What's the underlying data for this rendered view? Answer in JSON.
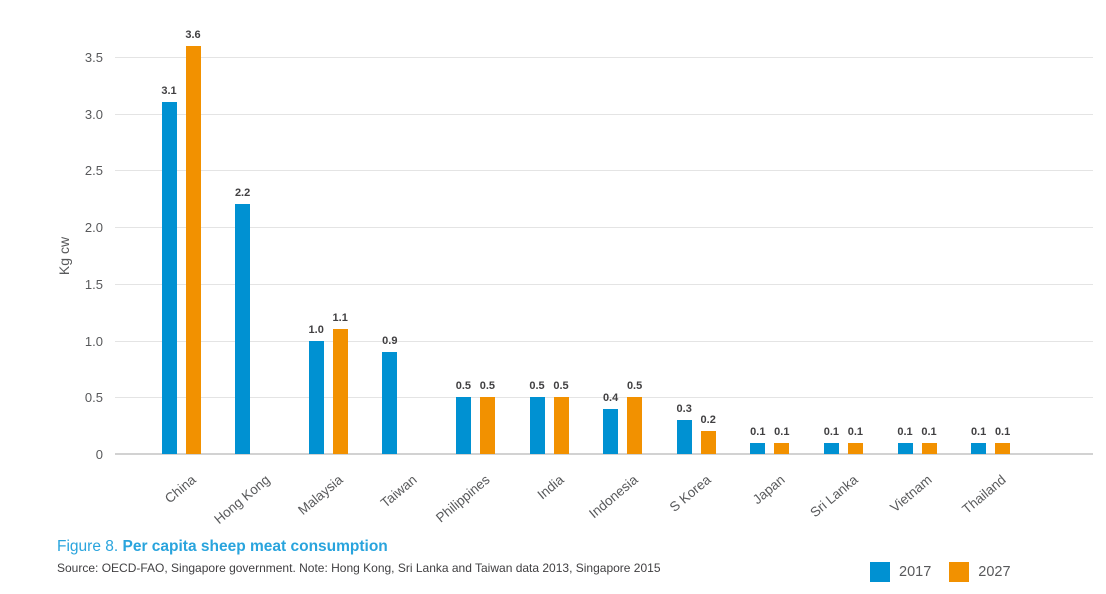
{
  "figure": {
    "label": "Figure 8.",
    "title": "Per capita sheep meat consumption",
    "source_note": "Source: OECD-FAO, Singapore government. Note: Hong Kong, Sri Lanka and Taiwan data 2013, Singapore 2015"
  },
  "colors": {
    "series_2017": "#0091d2",
    "series_2027": "#f29100",
    "caption_blue": "#29a4dd",
    "gridline": "#e4e4e4",
    "axis_line": "#d2d2d2",
    "tick_text": "#58595b",
    "value_label_text": "#414042"
  },
  "chart_data": {
    "type": "bar",
    "title": "Per capita sheep meat consumption",
    "categories": [
      "China",
      "Hong Kong",
      "Malaysia",
      "Taiwan",
      "Philippines",
      "India",
      "Indonesia",
      "S Korea",
      "Japan",
      "Sri Lanka",
      "Vietnam",
      "Thailand"
    ],
    "series": [
      {
        "name": "2017",
        "color": "#0091d2",
        "values": [
          3.1,
          2.2,
          1.0,
          0.9,
          0.5,
          0.5,
          0.4,
          0.3,
          0.1,
          0.1,
          0.1,
          0.1
        ]
      },
      {
        "name": "2027",
        "color": "#f29100",
        "values": [
          3.6,
          null,
          1.1,
          null,
          0.5,
          0.5,
          0.5,
          0.2,
          0.1,
          0.1,
          0.1,
          0.1
        ]
      }
    ],
    "ylabel": "Kg cw",
    "xlabel": "",
    "yticks": [
      {
        "value": 0,
        "label": "0"
      },
      {
        "value": 0.5,
        "label": "0.5"
      },
      {
        "value": 1.0,
        "label": "1.0"
      },
      {
        "value": 1.5,
        "label": "1.5"
      },
      {
        "value": 2.0,
        "label": "2.0"
      },
      {
        "value": 2.5,
        "label": "2.5"
      },
      {
        "value": 3.0,
        "label": "3.0"
      },
      {
        "value": 3.5,
        "label": "3.5"
      }
    ],
    "ylim": [
      0,
      3.5
    ],
    "grid": "horizontal",
    "value_label_format": "one-decimal",
    "legend_position": "bottom-right",
    "notes": "No 2027 bar shown for Hong Kong and Taiwan"
  }
}
